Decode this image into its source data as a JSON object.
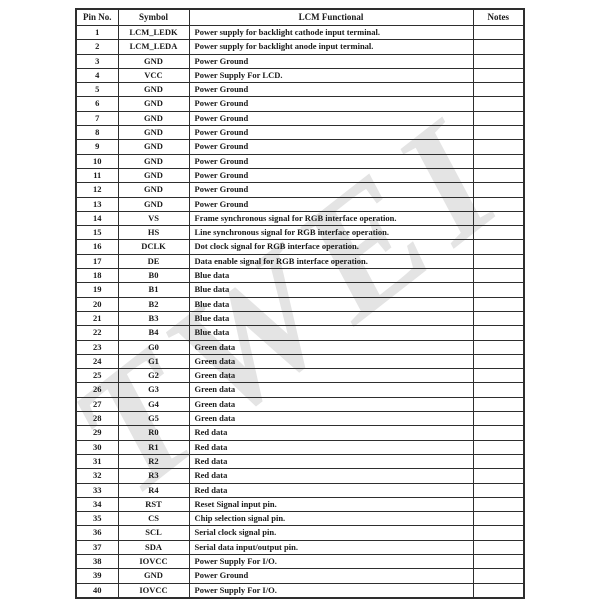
{
  "page": {
    "watermark_text": "TWEI",
    "background_color": "#ffffff",
    "border_color": "#2e2e2e",
    "text_color": "#1a1a1a",
    "watermark_color": "#e4e4e4"
  },
  "table": {
    "columns": [
      "Pin No.",
      "Symbol",
      "LCM Functional",
      "Notes"
    ],
    "rows": [
      [
        "1",
        "LCM_LEDK",
        "Power supply for backlight cathode input terminal.",
        ""
      ],
      [
        "2",
        "LCM_LEDA",
        "Power supply for backlight anode input terminal.",
        ""
      ],
      [
        "3",
        "GND",
        "Power Ground",
        ""
      ],
      [
        "4",
        "VCC",
        "Power Supply For LCD.",
        ""
      ],
      [
        "5",
        "GND",
        "Power Ground",
        ""
      ],
      [
        "6",
        "GND",
        "Power Ground",
        ""
      ],
      [
        "7",
        "GND",
        "Power Ground",
        ""
      ],
      [
        "8",
        "GND",
        "Power Ground",
        ""
      ],
      [
        "9",
        "GND",
        "Power Ground",
        ""
      ],
      [
        "10",
        "GND",
        "Power Ground",
        ""
      ],
      [
        "11",
        "GND",
        "Power Ground",
        ""
      ],
      [
        "12",
        "GND",
        "Power Ground",
        ""
      ],
      [
        "13",
        "GND",
        "Power Ground",
        ""
      ],
      [
        "14",
        "VS",
        "Frame synchronous signal for RGB interface operation.",
        ""
      ],
      [
        "15",
        "HS",
        "Line synchronous signal for RGB interface operation.",
        ""
      ],
      [
        "16",
        "DCLK",
        "Dot clock signal for RGB interface operation.",
        ""
      ],
      [
        "17",
        "DE",
        "Data enable signal for RGB interface operation.",
        ""
      ],
      [
        "18",
        "B0",
        "Blue data",
        ""
      ],
      [
        "19",
        "B1",
        "Blue data",
        ""
      ],
      [
        "20",
        "B2",
        "Blue data",
        ""
      ],
      [
        "21",
        "B3",
        "Blue data",
        ""
      ],
      [
        "22",
        "B4",
        "Blue data",
        ""
      ],
      [
        "23",
        "G0",
        "Green data",
        ""
      ],
      [
        "24",
        "G1",
        "Green data",
        ""
      ],
      [
        "25",
        "G2",
        "Green data",
        ""
      ],
      [
        "26",
        "G3",
        "Green data",
        ""
      ],
      [
        "27",
        "G4",
        "Green data",
        ""
      ],
      [
        "28",
        "G5",
        "Green data",
        ""
      ],
      [
        "29",
        "R0",
        "Red data",
        ""
      ],
      [
        "30",
        "R1",
        "Red data",
        ""
      ],
      [
        "31",
        "R2",
        "Red data",
        ""
      ],
      [
        "32",
        "R3",
        "Red data",
        ""
      ],
      [
        "33",
        "R4",
        "Red data",
        ""
      ],
      [
        "34",
        "RST",
        "Reset Signal input pin.",
        ""
      ],
      [
        "35",
        "CS",
        "Chip selection signal pin.",
        ""
      ],
      [
        "36",
        "SCL",
        "Serial clock signal pin.",
        ""
      ],
      [
        "37",
        "SDA",
        "Serial data input/output pin.",
        ""
      ],
      [
        "38",
        "IOVCC",
        "Power Supply For I/O.",
        ""
      ],
      [
        "39",
        "GND",
        "Power Ground",
        ""
      ],
      [
        "40",
        "IOVCC",
        "Power Supply For I/O.",
        ""
      ]
    ]
  }
}
